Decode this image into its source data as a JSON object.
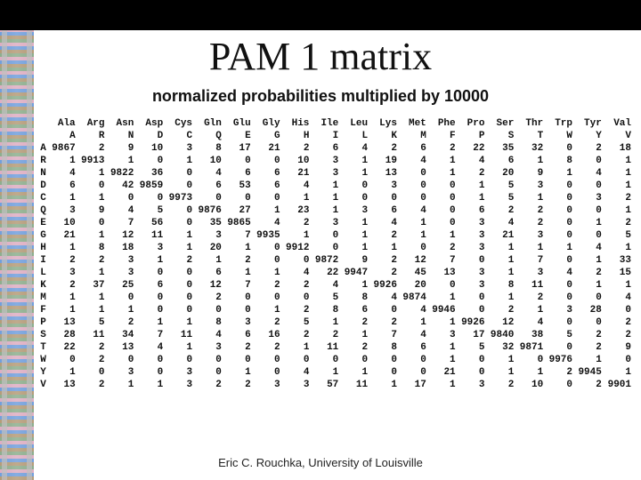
{
  "title": "PAM 1 matrix",
  "subtitle": "normalized probabilities multiplied by 10000",
  "footer": "Eric C. Rouchka, University of Louisville",
  "header_long": [
    "Ala",
    "Arg",
    "Asn",
    "Asp",
    "Cys",
    "Gln",
    "Glu",
    "Gly",
    "His",
    "Ile",
    "Leu",
    "Lys",
    "Met",
    "Phe",
    "Pro",
    "Ser",
    "Thr",
    "Trp",
    "Tyr",
    "Val"
  ],
  "header_short": [
    "A",
    "R",
    "N",
    "D",
    "C",
    "Q",
    "E",
    "G",
    "H",
    "I",
    "L",
    "K",
    "M",
    "F",
    "P",
    "S",
    "T",
    "W",
    "Y",
    "V"
  ],
  "row_labels": [
    "A",
    "R",
    "N",
    "D",
    "C",
    "Q",
    "E",
    "G",
    "H",
    "I",
    "L",
    "K",
    "M",
    "F",
    "P",
    "S",
    "T",
    "W",
    "Y",
    "V"
  ],
  "matrix": [
    [
      9867,
      2,
      9,
      10,
      3,
      8,
      17,
      21,
      2,
      6,
      4,
      2,
      6,
      2,
      22,
      35,
      32,
      0,
      2,
      18
    ],
    [
      1,
      9913,
      1,
      0,
      1,
      10,
      0,
      0,
      10,
      3,
      1,
      19,
      4,
      1,
      4,
      6,
      1,
      8,
      0,
      1
    ],
    [
      4,
      1,
      9822,
      36,
      0,
      4,
      6,
      6,
      21,
      3,
      1,
      13,
      0,
      1,
      2,
      20,
      9,
      1,
      4,
      1
    ],
    [
      6,
      0,
      42,
      9859,
      0,
      6,
      53,
      6,
      4,
      1,
      0,
      3,
      0,
      0,
      1,
      5,
      3,
      0,
      0,
      1
    ],
    [
      1,
      1,
      0,
      0,
      9973,
      0,
      0,
      0,
      1,
      1,
      0,
      0,
      0,
      0,
      1,
      5,
      1,
      0,
      3,
      2
    ],
    [
      3,
      9,
      4,
      5,
      0,
      9876,
      27,
      1,
      23,
      1,
      3,
      6,
      4,
      0,
      6,
      2,
      2,
      0,
      0,
      1
    ],
    [
      10,
      0,
      7,
      56,
      0,
      35,
      9865,
      4,
      2,
      3,
      1,
      4,
      1,
      0,
      3,
      4,
      2,
      0,
      1,
      2
    ],
    [
      21,
      1,
      12,
      11,
      1,
      3,
      7,
      9935,
      1,
      0,
      1,
      2,
      1,
      1,
      3,
      21,
      3,
      0,
      0,
      5
    ],
    [
      1,
      8,
      18,
      3,
      1,
      20,
      1,
      0,
      9912,
      0,
      1,
      1,
      0,
      2,
      3,
      1,
      1,
      1,
      4,
      1
    ],
    [
      2,
      2,
      3,
      1,
      2,
      1,
      2,
      0,
      0,
      9872,
      9,
      2,
      12,
      7,
      0,
      1,
      7,
      0,
      1,
      33
    ],
    [
      3,
      1,
      3,
      0,
      0,
      6,
      1,
      1,
      4,
      22,
      9947,
      2,
      45,
      13,
      3,
      1,
      3,
      4,
      2,
      15
    ],
    [
      2,
      37,
      25,
      6,
      0,
      12,
      7,
      2,
      2,
      4,
      1,
      9926,
      20,
      0,
      3,
      8,
      11,
      0,
      1,
      1
    ],
    [
      1,
      1,
      0,
      0,
      0,
      2,
      0,
      0,
      0,
      5,
      8,
      4,
      9874,
      1,
      0,
      1,
      2,
      0,
      0,
      4
    ],
    [
      1,
      1,
      1,
      0,
      0,
      0,
      0,
      1,
      2,
      8,
      6,
      0,
      4,
      9946,
      0,
      2,
      1,
      3,
      28,
      0
    ],
    [
      13,
      5,
      2,
      1,
      1,
      8,
      3,
      2,
      5,
      1,
      2,
      2,
      1,
      1,
      9926,
      12,
      4,
      0,
      0,
      2
    ],
    [
      28,
      11,
      34,
      7,
      11,
      4,
      6,
      16,
      2,
      2,
      1,
      7,
      4,
      3,
      17,
      9840,
      38,
      5,
      2,
      2
    ],
    [
      22,
      2,
      13,
      4,
      1,
      3,
      2,
      2,
      1,
      11,
      2,
      8,
      6,
      1,
      5,
      32,
      9871,
      0,
      2,
      9
    ],
    [
      0,
      2,
      0,
      0,
      0,
      0,
      0,
      0,
      0,
      0,
      0,
      0,
      0,
      1,
      0,
      1,
      0,
      9976,
      1,
      0
    ],
    [
      1,
      0,
      3,
      0,
      3,
      0,
      1,
      0,
      4,
      1,
      1,
      0,
      0,
      21,
      0,
      1,
      1,
      2,
      9945,
      1
    ],
    [
      13,
      2,
      1,
      1,
      3,
      2,
      2,
      3,
      3,
      57,
      11,
      1,
      17,
      1,
      3,
      2,
      10,
      0,
      2,
      9901
    ]
  ]
}
